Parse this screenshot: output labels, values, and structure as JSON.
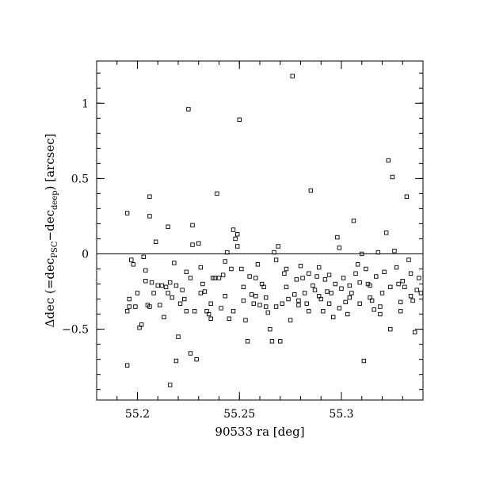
{
  "chart_data": {
    "type": "scatter",
    "xlabel": "90533 ra [deg]",
    "ylabel": {
      "prefix": "Δdec (=dec",
      "sub1": "PSC",
      "mid": "−dec",
      "sub2": "deep",
      "suffix": ") [arcsec]"
    },
    "xlim": [
      55.18,
      55.34
    ],
    "ylim": [
      -0.97,
      1.28
    ],
    "xticks": [
      55.2,
      55.25,
      55.3
    ],
    "xtick_labels": [
      "55.2",
      "55.25",
      "55.3"
    ],
    "yticks": [
      -0.5,
      0,
      0.5,
      1
    ],
    "ytick_labels": [
      "−0.5",
      "0",
      "0.5",
      "1"
    ],
    "x_minor_step": 0.01,
    "y_minor_step": 0.1,
    "hline": 0,
    "marker": "open-square",
    "grid": false,
    "points": [
      [
        55.195,
        0.27
      ],
      [
        55.206,
        0.25
      ],
      [
        55.206,
        0.38
      ],
      [
        55.209,
        0.08
      ],
      [
        55.215,
        0.18
      ],
      [
        55.216,
        -0.87
      ],
      [
        55.219,
        -0.71
      ],
      [
        55.22,
        -0.55
      ],
      [
        55.195,
        -0.74
      ],
      [
        55.195,
        -0.38
      ],
      [
        55.196,
        -0.35
      ],
      [
        55.197,
        -0.04
      ],
      [
        55.198,
        -0.07
      ],
      [
        55.2,
        -0.26
      ],
      [
        55.201,
        -0.49
      ],
      [
        55.202,
        -0.47
      ],
      [
        55.203,
        -0.02
      ],
      [
        55.204,
        -0.11
      ],
      [
        55.205,
        -0.34
      ],
      [
        55.206,
        -0.35
      ],
      [
        55.207,
        -0.19
      ],
      [
        55.208,
        -0.26
      ],
      [
        55.21,
        -0.21
      ],
      [
        55.212,
        -0.21
      ],
      [
        55.213,
        -0.42
      ],
      [
        55.214,
        -0.22
      ],
      [
        55.215,
        -0.26
      ],
      [
        55.216,
        -0.19
      ],
      [
        55.218,
        -0.06
      ],
      [
        55.219,
        -0.21
      ],
      [
        55.221,
        -0.33
      ],
      [
        55.222,
        -0.24
      ],
      [
        55.223,
        -0.3
      ],
      [
        55.224,
        -0.12
      ],
      [
        55.225,
        0.96
      ],
      [
        55.226,
        -0.16
      ],
      [
        55.226,
        -0.66
      ],
      [
        55.227,
        0.19
      ],
      [
        55.227,
        0.06
      ],
      [
        55.228,
        -0.38
      ],
      [
        55.229,
        -0.7
      ],
      [
        55.23,
        0.07
      ],
      [
        55.231,
        -0.09
      ],
      [
        55.232,
        -0.2
      ],
      [
        55.233,
        -0.25
      ],
      [
        55.234,
        -0.38
      ],
      [
        55.235,
        -0.4
      ],
      [
        55.236,
        -0.43
      ],
      [
        55.237,
        -0.16
      ],
      [
        55.238,
        -0.16
      ],
      [
        55.239,
        0.4
      ],
      [
        55.24,
        -0.16
      ],
      [
        55.241,
        -0.36
      ],
      [
        55.242,
        -0.14
      ],
      [
        55.243,
        -0.05
      ],
      [
        55.244,
        0.01
      ],
      [
        55.245,
        -0.43
      ],
      [
        55.246,
        -0.1
      ],
      [
        55.247,
        0.16
      ],
      [
        55.248,
        0.1
      ],
      [
        55.249,
        0.13
      ],
      [
        55.249,
        0.05
      ],
      [
        55.25,
        0.89
      ],
      [
        55.251,
        -0.1
      ],
      [
        55.252,
        -0.22
      ],
      [
        55.253,
        -0.44
      ],
      [
        55.254,
        -0.58
      ],
      [
        55.255,
        -0.15
      ],
      [
        55.256,
        -0.27
      ],
      [
        55.257,
        -0.33
      ],
      [
        55.258,
        -0.28
      ],
      [
        55.259,
        -0.07
      ],
      [
        55.26,
        -0.34
      ],
      [
        55.261,
        -0.2
      ],
      [
        55.262,
        -0.22
      ],
      [
        55.263,
        -0.35
      ],
      [
        55.264,
        -0.39
      ],
      [
        55.265,
        -0.5
      ],
      [
        55.266,
        -0.58
      ],
      [
        55.267,
        0.01
      ],
      [
        55.268,
        -0.04
      ],
      [
        55.269,
        0.05
      ],
      [
        55.27,
        -0.58
      ],
      [
        55.271,
        -0.33
      ],
      [
        55.272,
        -0.13
      ],
      [
        55.273,
        -0.1
      ],
      [
        55.274,
        -0.3
      ],
      [
        55.275,
        -0.44
      ],
      [
        55.276,
        1.18
      ],
      [
        55.277,
        -0.27
      ],
      [
        55.278,
        -0.17
      ],
      [
        55.279,
        -0.34
      ],
      [
        55.28,
        -0.08
      ],
      [
        55.281,
        -0.16
      ],
      [
        55.282,
        -0.26
      ],
      [
        55.283,
        -0.33
      ],
      [
        55.284,
        -0.13
      ],
      [
        55.285,
        0.42
      ],
      [
        55.286,
        -0.21
      ],
      [
        55.287,
        -0.24
      ],
      [
        55.288,
        -0.15
      ],
      [
        55.289,
        -0.09
      ],
      [
        55.29,
        -0.3
      ],
      [
        55.291,
        -0.38
      ],
      [
        55.292,
        -0.17
      ],
      [
        55.293,
        -0.25
      ],
      [
        55.294,
        -0.14
      ],
      [
        55.295,
        -0.26
      ],
      [
        55.296,
        -0.42
      ],
      [
        55.297,
        -0.2
      ],
      [
        55.298,
        0.11
      ],
      [
        55.299,
        0.04
      ],
      [
        55.3,
        -0.23
      ],
      [
        55.301,
        -0.16
      ],
      [
        55.302,
        -0.32
      ],
      [
        55.303,
        -0.4
      ],
      [
        55.304,
        -0.21
      ],
      [
        55.305,
        -0.26
      ],
      [
        55.306,
        0.22
      ],
      [
        55.307,
        -0.13
      ],
      [
        55.308,
        -0.07
      ],
      [
        55.309,
        -0.19
      ],
      [
        55.31,
        0.0
      ],
      [
        55.311,
        -0.71
      ],
      [
        55.312,
        -0.1
      ],
      [
        55.313,
        -0.2
      ],
      [
        55.314,
        -0.29
      ],
      [
        55.315,
        -0.31
      ],
      [
        55.316,
        -0.37
      ],
      [
        55.317,
        -0.15
      ],
      [
        55.318,
        0.01
      ],
      [
        55.319,
        -0.4
      ],
      [
        55.32,
        -0.26
      ],
      [
        55.321,
        -0.12
      ],
      [
        55.322,
        0.14
      ],
      [
        55.323,
        0.62
      ],
      [
        55.324,
        -0.5
      ],
      [
        55.325,
        0.51
      ],
      [
        55.326,
        0.02
      ],
      [
        55.327,
        -0.09
      ],
      [
        55.328,
        -0.2
      ],
      [
        55.329,
        -0.38
      ],
      [
        55.33,
        -0.18
      ],
      [
        55.331,
        -0.22
      ],
      [
        55.332,
        0.38
      ],
      [
        55.333,
        -0.04
      ],
      [
        55.334,
        -0.13
      ],
      [
        55.335,
        -0.31
      ],
      [
        55.336,
        -0.52
      ],
      [
        55.337,
        -0.24
      ],
      [
        55.338,
        -0.16
      ],
      [
        55.339,
        -0.26
      ],
      [
        55.196,
        -0.3
      ],
      [
        55.199,
        -0.35
      ],
      [
        55.204,
        -0.18
      ],
      [
        55.211,
        -0.34
      ],
      [
        55.217,
        -0.29
      ],
      [
        55.224,
        -0.38
      ],
      [
        55.231,
        -0.26
      ],
      [
        55.236,
        -0.33
      ],
      [
        55.243,
        -0.28
      ],
      [
        55.247,
        -0.38
      ],
      [
        55.252,
        -0.31
      ],
      [
        55.258,
        -0.16
      ],
      [
        55.263,
        -0.29
      ],
      [
        55.268,
        -0.35
      ],
      [
        55.273,
        -0.22
      ],
      [
        55.279,
        -0.31
      ],
      [
        55.284,
        -0.38
      ],
      [
        55.289,
        -0.28
      ],
      [
        55.294,
        -0.33
      ],
      [
        55.299,
        -0.36
      ],
      [
        55.304,
        -0.29
      ],
      [
        55.309,
        -0.33
      ],
      [
        55.314,
        -0.21
      ],
      [
        55.319,
        -0.35
      ],
      [
        55.324,
        -0.22
      ],
      [
        55.329,
        -0.32
      ],
      [
        55.334,
        -0.28
      ]
    ]
  }
}
